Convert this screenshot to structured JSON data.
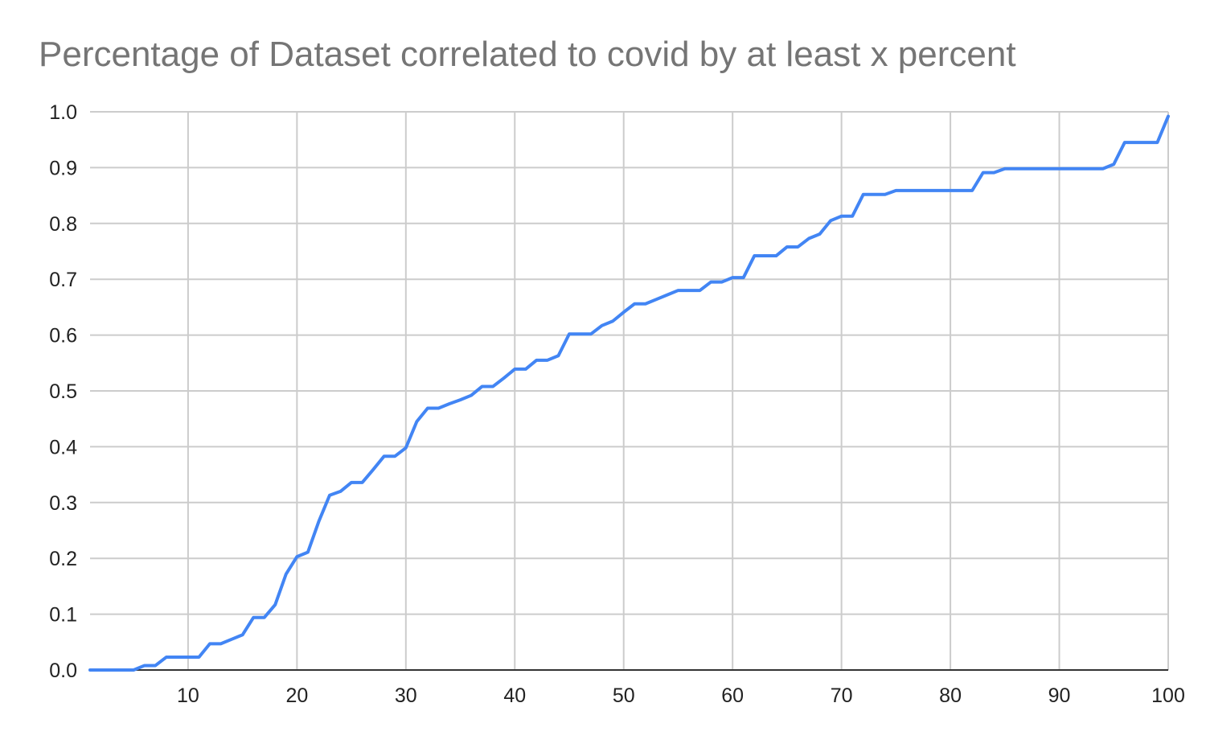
{
  "chart_data": {
    "type": "line",
    "title": "Percentage of Dataset correlated to covid by at least x percent",
    "xlabel": "",
    "ylabel": "",
    "xlim": [
      1,
      100
    ],
    "ylim": [
      0,
      1.0
    ],
    "x_ticks": [
      10,
      20,
      30,
      40,
      50,
      60,
      70,
      80,
      90,
      100
    ],
    "y_ticks": [
      "0.0",
      "0.1",
      "0.2",
      "0.3",
      "0.4",
      "0.5",
      "0.6",
      "0.7",
      "0.8",
      "0.9",
      "1.0"
    ],
    "grid": true,
    "legend": "none",
    "series_color": "#4285f4",
    "x": [
      1,
      2,
      3,
      4,
      5,
      6,
      7,
      8,
      9,
      10,
      11,
      12,
      13,
      14,
      15,
      16,
      17,
      18,
      19,
      20,
      21,
      22,
      23,
      24,
      25,
      26,
      27,
      28,
      29,
      30,
      31,
      32,
      33,
      34,
      35,
      36,
      37,
      38,
      39,
      40,
      41,
      42,
      43,
      44,
      45,
      46,
      47,
      48,
      49,
      50,
      51,
      52,
      53,
      54,
      55,
      56,
      57,
      58,
      59,
      60,
      61,
      62,
      63,
      64,
      65,
      66,
      67,
      68,
      69,
      70,
      71,
      72,
      73,
      74,
      75,
      76,
      77,
      78,
      79,
      80,
      81,
      82,
      83,
      84,
      85,
      86,
      87,
      88,
      89,
      90,
      91,
      92,
      93,
      94,
      95,
      96,
      97,
      98,
      99,
      100
    ],
    "series": [
      {
        "values": [
          0,
          0,
          0,
          0,
          0,
          0.008,
          0.008,
          0.023,
          0.023,
          0.023,
          0.023,
          0.047,
          0.047,
          0.055,
          0.063,
          0.094,
          0.094,
          0.117,
          0.172,
          0.203,
          0.211,
          0.266,
          0.313,
          0.32,
          0.336,
          0.336,
          0.359,
          0.383,
          0.383,
          0.398,
          0.445,
          0.469,
          0.469,
          0.477,
          0.484,
          0.492,
          0.508,
          0.508,
          0.523,
          0.539,
          0.539,
          0.555,
          0.555,
          0.563,
          0.602,
          0.602,
          0.602,
          0.617,
          0.625,
          0.641,
          0.656,
          0.656,
          0.664,
          0.672,
          0.68,
          0.68,
          0.68,
          0.695,
          0.695,
          0.703,
          0.703,
          0.742,
          0.742,
          0.742,
          0.758,
          0.758,
          0.773,
          0.781,
          0.805,
          0.813,
          0.813,
          0.852,
          0.852,
          0.852,
          0.859,
          0.859,
          0.859,
          0.859,
          0.859,
          0.859,
          0.859,
          0.859,
          0.891,
          0.891,
          0.898,
          0.898,
          0.898,
          0.898,
          0.898,
          0.898,
          0.898,
          0.898,
          0.898,
          0.898,
          0.906,
          0.945,
          0.945,
          0.945,
          0.945,
          0.992
        ]
      }
    ]
  }
}
